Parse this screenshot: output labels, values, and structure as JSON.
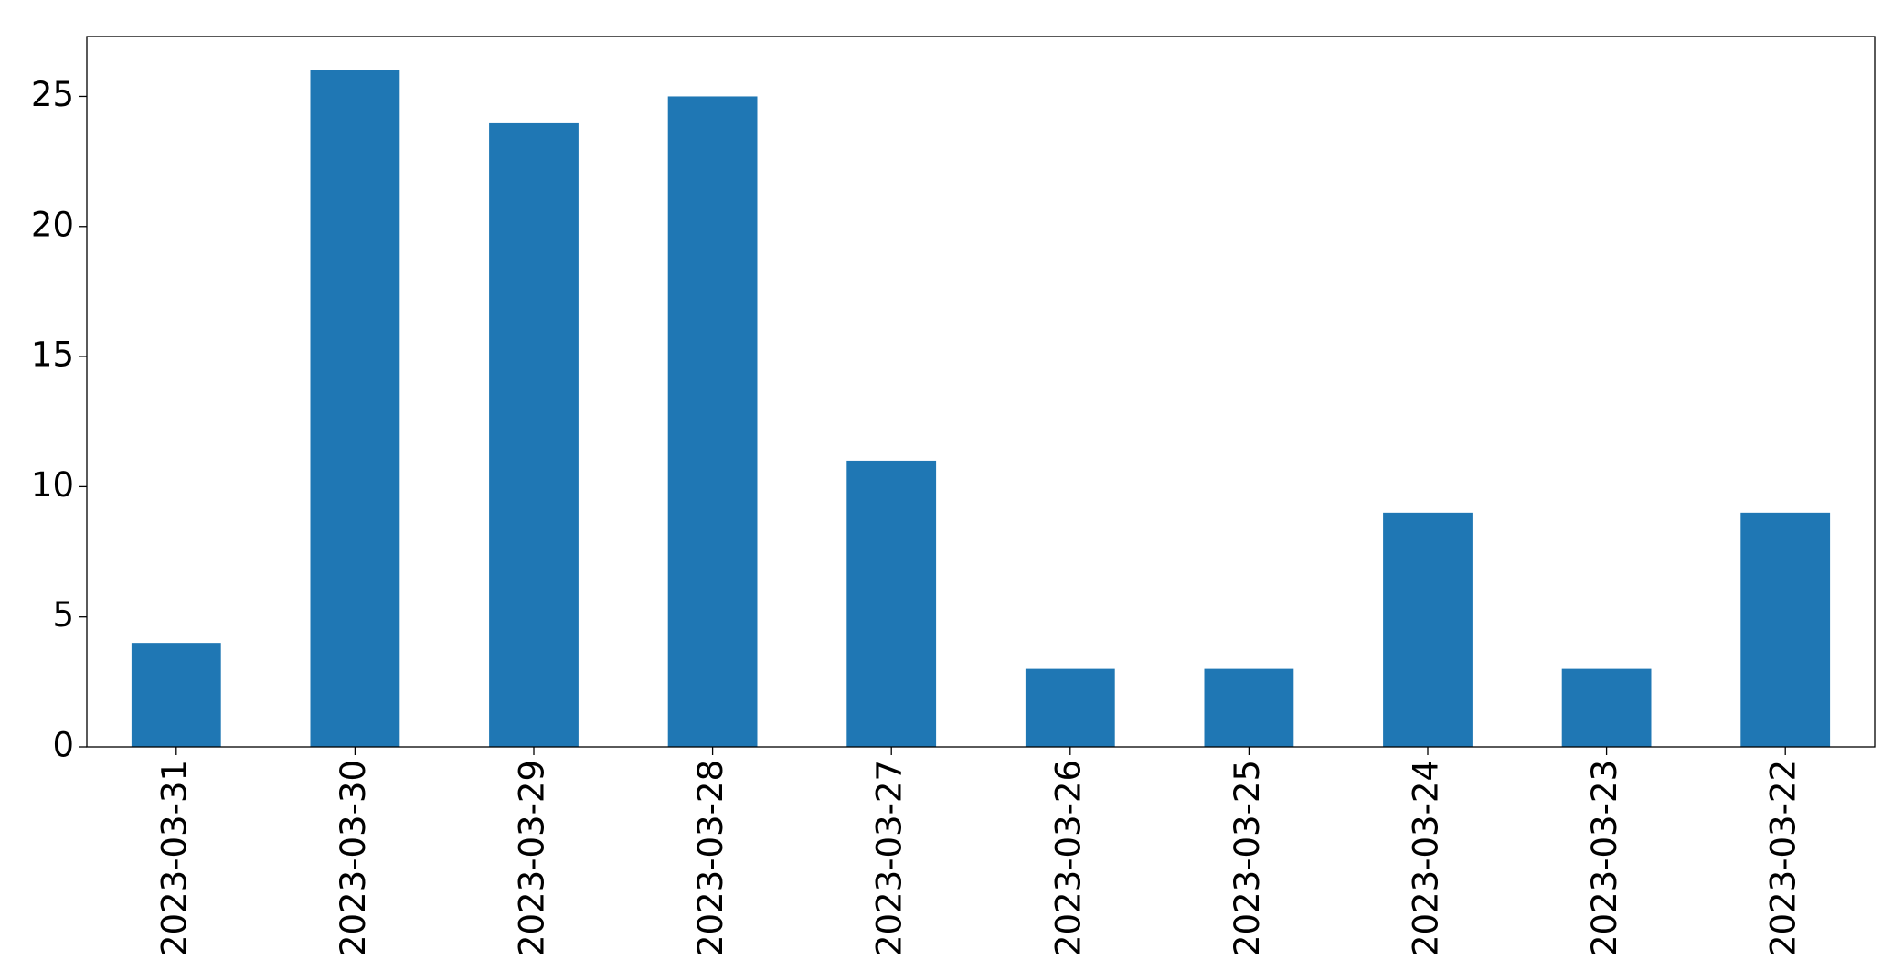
{
  "chart_data": {
    "type": "bar",
    "categories": [
      "2023-03-31",
      "2023-03-30",
      "2023-03-29",
      "2023-03-28",
      "2023-03-27",
      "2023-03-26",
      "2023-03-25",
      "2023-03-24",
      "2023-03-23",
      "2023-03-22"
    ],
    "values": [
      4,
      26,
      24,
      25,
      11,
      3,
      3,
      9,
      3,
      9
    ],
    "color": "#1f77b4",
    "ylim": [
      0,
      27.3
    ],
    "yticks": [
      0,
      5,
      10,
      15,
      20,
      25
    ],
    "grid": false
  }
}
